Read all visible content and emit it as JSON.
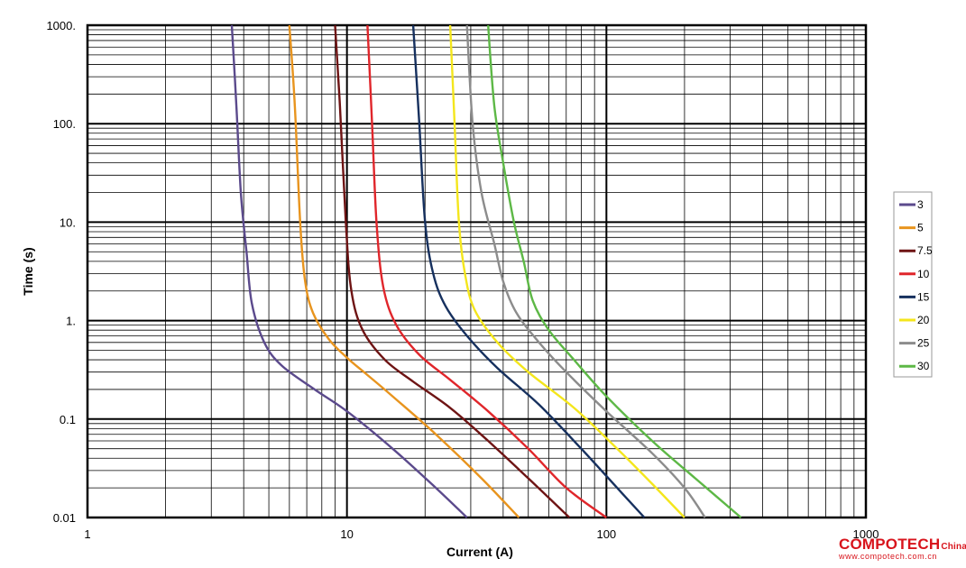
{
  "chart_data": {
    "type": "line",
    "xlabel": "Current (A)",
    "ylabel": "Time (s)",
    "x_scale": "log",
    "y_scale": "log",
    "xlim": [
      1,
      1000
    ],
    "ylim": [
      0.01,
      1000
    ],
    "x_ticks": [
      {
        "value": 1,
        "label": "1"
      },
      {
        "value": 10,
        "label": "10"
      },
      {
        "value": 100,
        "label": "100"
      },
      {
        "value": 1000,
        "label": "1000"
      }
    ],
    "y_ticks": [
      {
        "value": 0.01,
        "label": "0.01"
      },
      {
        "value": 0.1,
        "label": "0.1"
      },
      {
        "value": 1,
        "label": "1."
      },
      {
        "value": 10,
        "label": "10."
      },
      {
        "value": 100,
        "label": "100."
      },
      {
        "value": 1000,
        "label": "1000."
      }
    ],
    "grid": true,
    "legend_position": "right",
    "series": [
      {
        "name": "3",
        "color": "#5b4a8c",
        "points": [
          [
            3.6,
            1000
          ],
          [
            3.75,
            150
          ],
          [
            3.9,
            20
          ],
          [
            4.1,
            5
          ],
          [
            4.3,
            1.5
          ],
          [
            4.8,
            0.6
          ],
          [
            5.6,
            0.35
          ],
          [
            7.5,
            0.2
          ],
          [
            10,
            0.12
          ],
          [
            15,
            0.05
          ],
          [
            22,
            0.02
          ],
          [
            29,
            0.01
          ]
        ]
      },
      {
        "name": "5",
        "color": "#e8941e",
        "points": [
          [
            6,
            1000
          ],
          [
            6.3,
            150
          ],
          [
            6.6,
            10
          ],
          [
            6.9,
            2.5
          ],
          [
            7.4,
            1.2
          ],
          [
            8.5,
            0.65
          ],
          [
            10,
            0.42
          ],
          [
            12,
            0.28
          ],
          [
            15,
            0.17
          ],
          [
            22,
            0.07
          ],
          [
            33,
            0.025
          ],
          [
            46,
            0.01
          ]
        ]
      },
      {
        "name": "7.5",
        "color": "#6e1414",
        "points": [
          [
            9,
            1000
          ],
          [
            9.4,
            150
          ],
          [
            9.9,
            10
          ],
          [
            10.4,
            2
          ],
          [
            11.5,
            0.8
          ],
          [
            14,
            0.4
          ],
          [
            18,
            0.24
          ],
          [
            25,
            0.13
          ],
          [
            35,
            0.06
          ],
          [
            50,
            0.025
          ],
          [
            72,
            0.01
          ]
        ]
      },
      {
        "name": "10",
        "color": "#e0262b",
        "points": [
          [
            12,
            1000
          ],
          [
            12.5,
            100
          ],
          [
            13,
            10
          ],
          [
            13.8,
            2.2
          ],
          [
            15.5,
            0.9
          ],
          [
            19,
            0.45
          ],
          [
            25,
            0.25
          ],
          [
            35,
            0.12
          ],
          [
            50,
            0.05
          ],
          [
            70,
            0.02
          ],
          [
            100,
            0.01
          ]
        ]
      },
      {
        "name": "15",
        "color": "#16305e",
        "points": [
          [
            18,
            1000
          ],
          [
            19,
            100
          ],
          [
            20,
            10
          ],
          [
            21.5,
            3
          ],
          [
            24,
            1.4
          ],
          [
            29,
            0.7
          ],
          [
            38,
            0.33
          ],
          [
            55,
            0.14
          ],
          [
            80,
            0.05
          ],
          [
            110,
            0.02
          ],
          [
            140,
            0.01
          ]
        ]
      },
      {
        "name": "20",
        "color": "#f4e61c",
        "points": [
          [
            25,
            1000
          ],
          [
            26,
            100
          ],
          [
            27,
            10
          ],
          [
            28.5,
            3
          ],
          [
            31,
            1.3
          ],
          [
            38,
            0.6
          ],
          [
            50,
            0.3
          ],
          [
            75,
            0.13
          ],
          [
            110,
            0.05
          ],
          [
            150,
            0.022
          ],
          [
            200,
            0.01
          ]
        ]
      },
      {
        "name": "25",
        "color": "#8c8c8c",
        "points": [
          [
            29,
            1000
          ],
          [
            30.5,
            100
          ],
          [
            33,
            20
          ],
          [
            37,
            6
          ],
          [
            40,
            2.5
          ],
          [
            45,
            1.2
          ],
          [
            55,
            0.6
          ],
          [
            70,
            0.3
          ],
          [
            100,
            0.12
          ],
          [
            150,
            0.045
          ],
          [
            200,
            0.02
          ],
          [
            240,
            0.01
          ]
        ]
      },
      {
        "name": "30",
        "color": "#5db846",
        "points": [
          [
            35,
            1000
          ],
          [
            37,
            150
          ],
          [
            40,
            40
          ],
          [
            44,
            10
          ],
          [
            48,
            4
          ],
          [
            52,
            1.6
          ],
          [
            60,
            0.8
          ],
          [
            75,
            0.4
          ],
          [
            100,
            0.17
          ],
          [
            150,
            0.06
          ],
          [
            220,
            0.025
          ],
          [
            330,
            0.01
          ]
        ]
      }
    ]
  },
  "watermark": {
    "brand": "COMPOTECH",
    "brand_suffix": "China",
    "url": "www.compotech.com.cn"
  }
}
